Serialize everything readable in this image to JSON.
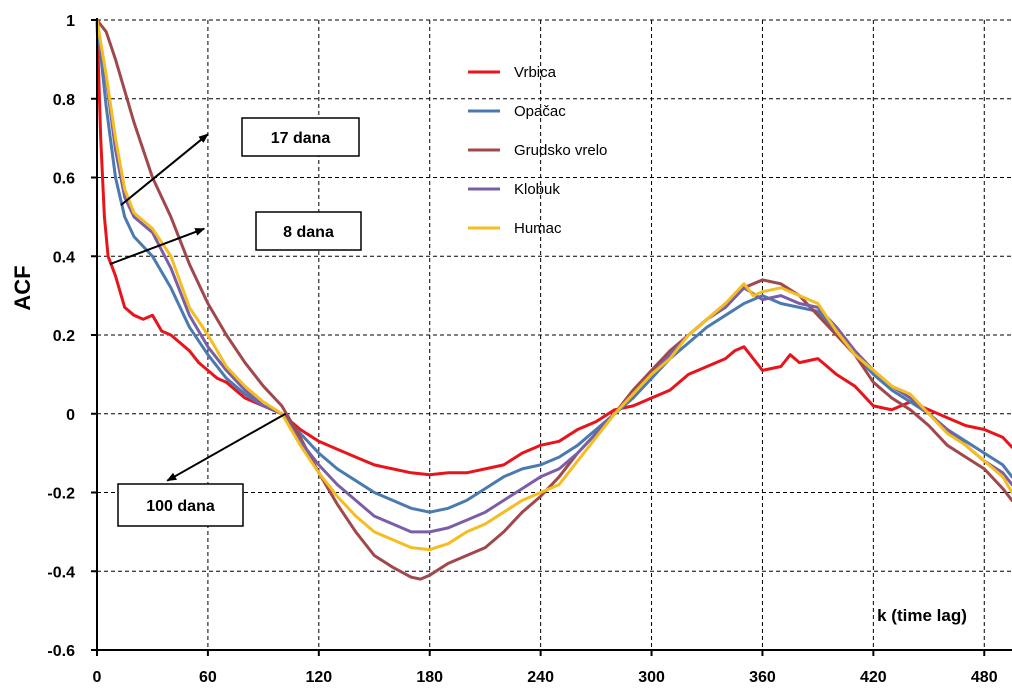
{
  "chart_data": {
    "type": "line",
    "title": "",
    "xlabel": "k (time lag)",
    "ylabel": "ACF",
    "xlim": [
      0,
      495
    ],
    "ylim": [
      -0.6,
      1
    ],
    "x_ticks": [
      0,
      60,
      120,
      180,
      240,
      300,
      360,
      420,
      480
    ],
    "y_ticks": [
      1,
      0.8,
      0.6,
      0.4,
      0.2,
      0,
      -0.2,
      -0.4,
      -0.6
    ],
    "y_tick_labels": [
      "1",
      "0.8",
      "0.6",
      "0.4",
      "0.2",
      "0",
      "-0.2",
      "-0.4",
      "-0.6"
    ],
    "grid": true,
    "legend_position": "top-center",
    "series": [
      {
        "name": "Vrbica",
        "color": "#e8141c",
        "x": [
          0,
          2,
          4,
          6,
          10,
          15,
          20,
          25,
          30,
          35,
          40,
          45,
          50,
          55,
          60,
          65,
          70,
          80,
          90,
          100,
          110,
          120,
          130,
          140,
          150,
          160,
          170,
          180,
          190,
          200,
          210,
          220,
          230,
          240,
          250,
          260,
          270,
          280,
          290,
          300,
          310,
          320,
          330,
          340,
          345,
          350,
          355,
          360,
          370,
          375,
          380,
          390,
          395,
          400,
          410,
          420,
          430,
          440,
          450,
          460,
          470,
          480,
          490,
          495
        ],
        "y": [
          1,
          0.7,
          0.5,
          0.4,
          0.35,
          0.27,
          0.25,
          0.24,
          0.25,
          0.21,
          0.2,
          0.18,
          0.16,
          0.13,
          0.11,
          0.09,
          0.08,
          0.04,
          0.02,
          0,
          -0.04,
          -0.07,
          -0.09,
          -0.11,
          -0.13,
          -0.14,
          -0.15,
          -0.155,
          -0.15,
          -0.15,
          -0.14,
          -0.13,
          -0.1,
          -0.08,
          -0.07,
          -0.04,
          -0.02,
          0.01,
          0.02,
          0.04,
          0.06,
          0.1,
          0.12,
          0.14,
          0.16,
          0.17,
          0.14,
          0.11,
          0.12,
          0.15,
          0.13,
          0.14,
          0.12,
          0.1,
          0.07,
          0.02,
          0.01,
          0.03,
          0.01,
          -0.01,
          -0.03,
          -0.04,
          -0.06,
          -0.085
        ]
      },
      {
        "name": "Opačac",
        "color": "#4a7ab0",
        "x": [
          0,
          5,
          10,
          15,
          20,
          30,
          40,
          50,
          60,
          70,
          80,
          90,
          100,
          110,
          120,
          130,
          140,
          150,
          160,
          170,
          180,
          190,
          200,
          210,
          220,
          230,
          240,
          250,
          260,
          270,
          280,
          290,
          300,
          310,
          320,
          330,
          340,
          350,
          360,
          370,
          380,
          390,
          400,
          410,
          420,
          430,
          440,
          450,
          460,
          470,
          480,
          490,
          495
        ],
        "y": [
          1,
          0.78,
          0.6,
          0.5,
          0.45,
          0.4,
          0.32,
          0.22,
          0.15,
          0.09,
          0.05,
          0.02,
          0,
          -0.05,
          -0.1,
          -0.14,
          -0.17,
          -0.2,
          -0.22,
          -0.24,
          -0.25,
          -0.24,
          -0.22,
          -0.19,
          -0.16,
          -0.14,
          -0.13,
          -0.11,
          -0.08,
          -0.04,
          0,
          0.04,
          0.09,
          0.14,
          0.18,
          0.22,
          0.25,
          0.28,
          0.3,
          0.28,
          0.27,
          0.26,
          0.21,
          0.15,
          0.1,
          0.06,
          0.03,
          0,
          -0.04,
          -0.07,
          -0.1,
          -0.13,
          -0.16
        ]
      },
      {
        "name": "Grudsko vrelo",
        "color": "#a0484c",
        "x": [
          0,
          5,
          10,
          20,
          30,
          40,
          50,
          60,
          70,
          80,
          90,
          100,
          110,
          120,
          130,
          140,
          150,
          160,
          170,
          175,
          180,
          190,
          200,
          210,
          220,
          230,
          240,
          250,
          260,
          270,
          280,
          290,
          300,
          310,
          320,
          330,
          340,
          350,
          360,
          370,
          380,
          390,
          400,
          410,
          420,
          430,
          440,
          450,
          460,
          470,
          480,
          490,
          495
        ],
        "y": [
          1,
          0.97,
          0.9,
          0.74,
          0.6,
          0.5,
          0.38,
          0.28,
          0.2,
          0.13,
          0.07,
          0.02,
          -0.06,
          -0.15,
          -0.23,
          -0.3,
          -0.36,
          -0.39,
          -0.415,
          -0.42,
          -0.41,
          -0.38,
          -0.36,
          -0.34,
          -0.3,
          -0.25,
          -0.21,
          -0.16,
          -0.1,
          -0.05,
          0,
          0.06,
          0.11,
          0.16,
          0.2,
          0.24,
          0.28,
          0.32,
          0.34,
          0.33,
          0.3,
          0.25,
          0.2,
          0.15,
          0.08,
          0.04,
          0.01,
          -0.03,
          -0.08,
          -0.11,
          -0.14,
          -0.19,
          -0.22
        ]
      },
      {
        "name": "Klobuk",
        "color": "#7a5fa8",
        "x": [
          0,
          5,
          10,
          15,
          20,
          30,
          40,
          50,
          60,
          70,
          80,
          90,
          100,
          110,
          120,
          130,
          140,
          150,
          160,
          170,
          180,
          190,
          200,
          210,
          220,
          230,
          240,
          250,
          260,
          270,
          280,
          290,
          300,
          310,
          320,
          330,
          340,
          350,
          360,
          370,
          380,
          390,
          400,
          410,
          420,
          430,
          440,
          450,
          460,
          470,
          480,
          490,
          495
        ],
        "y": [
          1,
          0.85,
          0.67,
          0.55,
          0.5,
          0.46,
          0.37,
          0.25,
          0.17,
          0.11,
          0.06,
          0.02,
          0,
          -0.07,
          -0.13,
          -0.18,
          -0.22,
          -0.26,
          -0.28,
          -0.3,
          -0.3,
          -0.29,
          -0.27,
          -0.25,
          -0.22,
          -0.19,
          -0.16,
          -0.14,
          -0.1,
          -0.05,
          0,
          0.05,
          0.1,
          0.15,
          0.2,
          0.24,
          0.27,
          0.32,
          0.29,
          0.3,
          0.28,
          0.27,
          0.22,
          0.16,
          0.11,
          0.07,
          0.04,
          0,
          -0.04,
          -0.08,
          -0.12,
          -0.15,
          -0.18
        ]
      },
      {
        "name": "Humac",
        "color": "#f5bd1f",
        "x": [
          0,
          5,
          10,
          15,
          20,
          30,
          40,
          50,
          60,
          70,
          80,
          90,
          100,
          110,
          120,
          130,
          140,
          150,
          160,
          170,
          180,
          190,
          200,
          210,
          220,
          230,
          240,
          250,
          260,
          270,
          280,
          290,
          300,
          310,
          320,
          330,
          340,
          350,
          355,
          360,
          370,
          380,
          390,
          400,
          410,
          420,
          430,
          440,
          450,
          460,
          470,
          480,
          490,
          495
        ],
        "y": [
          1,
          0.86,
          0.7,
          0.57,
          0.51,
          0.47,
          0.4,
          0.27,
          0.2,
          0.12,
          0.07,
          0.03,
          0,
          -0.08,
          -0.15,
          -0.21,
          -0.26,
          -0.3,
          -0.32,
          -0.34,
          -0.345,
          -0.33,
          -0.3,
          -0.28,
          -0.25,
          -0.22,
          -0.2,
          -0.18,
          -0.12,
          -0.06,
          0,
          0.05,
          0.1,
          0.14,
          0.2,
          0.24,
          0.28,
          0.33,
          0.3,
          0.31,
          0.32,
          0.3,
          0.28,
          0.21,
          0.15,
          0.11,
          0.07,
          0.05,
          0,
          -0.05,
          -0.08,
          -0.12,
          -0.16,
          -0.2
        ]
      }
    ],
    "annotations": [
      {
        "text": "17 dana",
        "arrow_from": [
          13,
          0.53
        ],
        "arrow_to": [
          60,
          0.71
        ]
      },
      {
        "text": "8 dana",
        "arrow_from": [
          7,
          0.38
        ],
        "arrow_to": [
          58,
          0.47
        ]
      },
      {
        "text": "100 dana",
        "arrow_from": [
          102,
          0
        ],
        "arrow_to": [
          38,
          -0.17
        ]
      }
    ]
  }
}
